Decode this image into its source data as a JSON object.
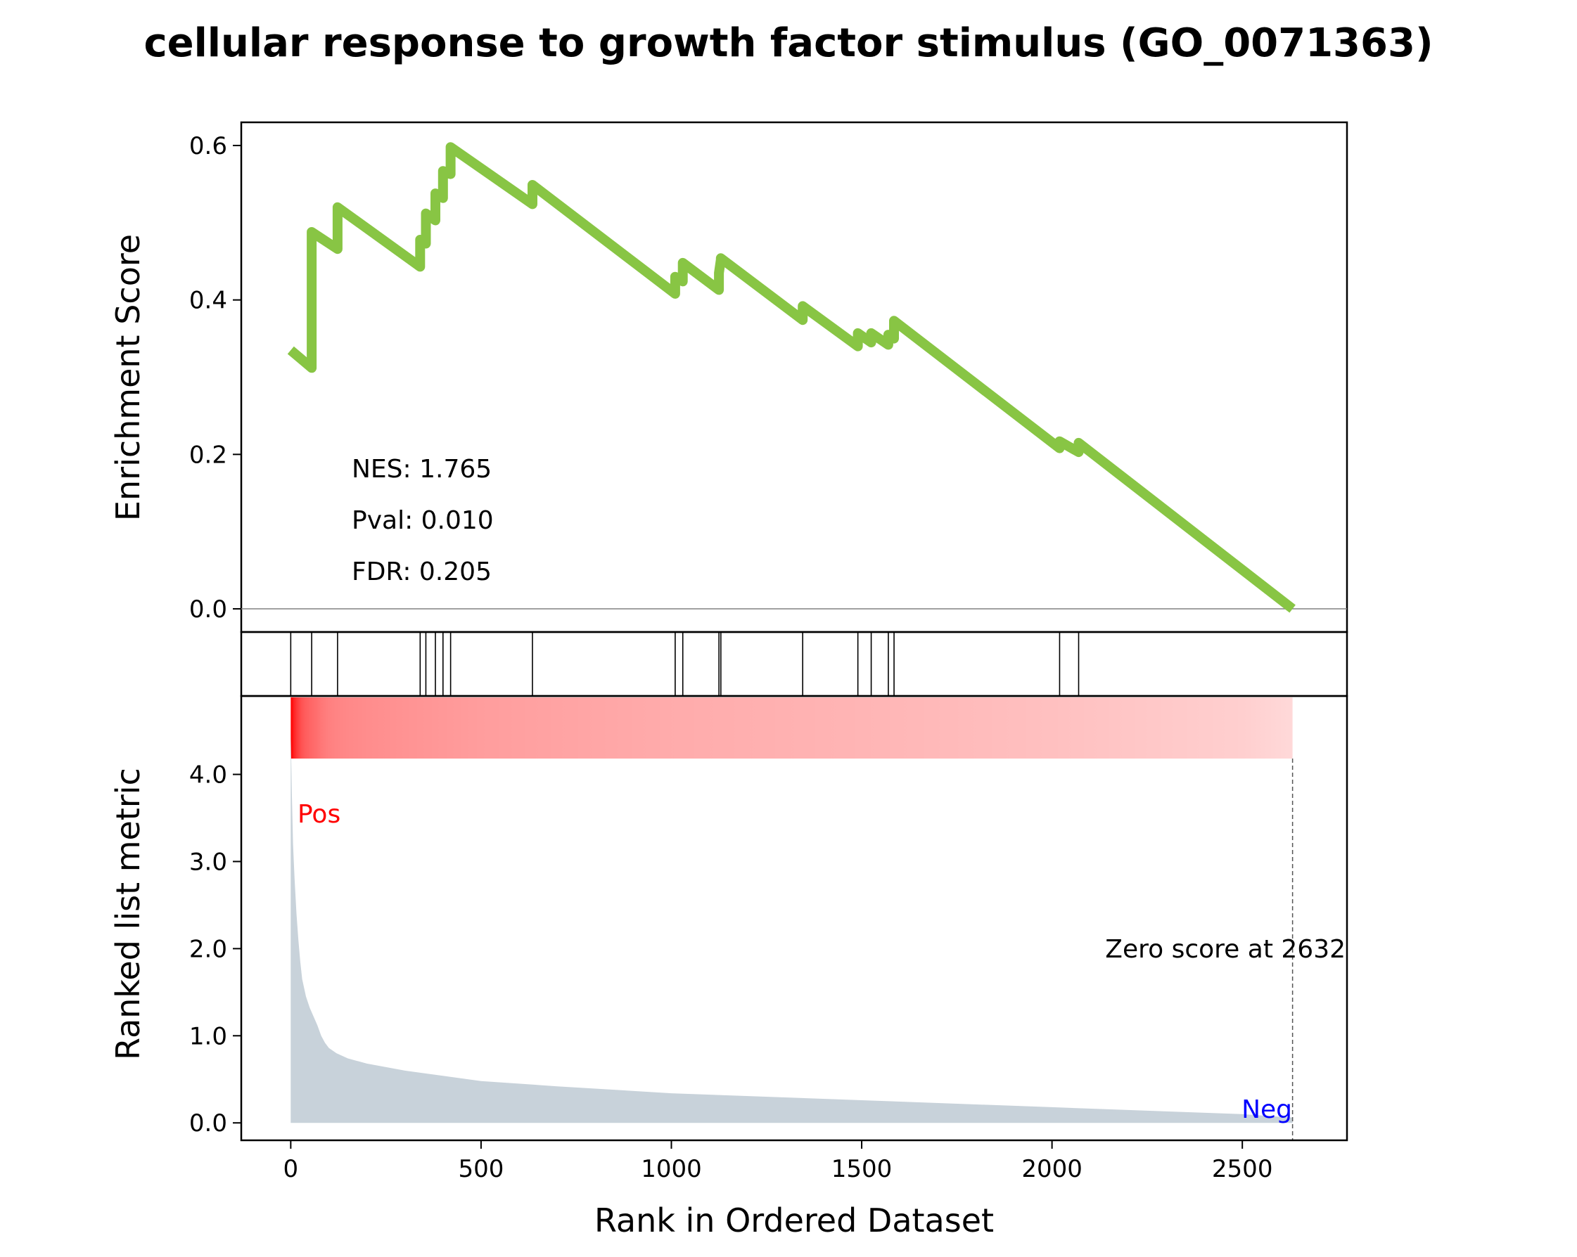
{
  "chart_data": {
    "type": "line",
    "title": "cellular response to growth factor stimulus (GO_0071363)",
    "xlabel": "Rank in Ordered Dataset",
    "xlim": [
      -130,
      2775
    ],
    "x_ticks": [
      0,
      500,
      1000,
      1500,
      2000,
      2500
    ],
    "x_tick_labels": [
      "0",
      "500",
      "1000",
      "1500",
      "2000",
      "2500"
    ],
    "es_panel": {
      "ylabel": "Enrichment Score",
      "ylim": [
        -0.03,
        0.63
      ],
      "y_ticks": [
        0.0,
        0.2,
        0.4,
        0.6
      ],
      "y_tick_labels": [
        "0.0",
        "0.2",
        "0.4",
        "0.6"
      ],
      "zero_line": true,
      "line_color": "#88c544",
      "series": [
        {
          "x": [
            0,
            55,
            55,
            123,
            123,
            340,
            340,
            355,
            355,
            380,
            380,
            400,
            400,
            420,
            420,
            635,
            635,
            1010,
            1010,
            1030,
            1030,
            1125,
            1125,
            1130,
            1130,
            1345,
            1345,
            1490,
            1490,
            1525,
            1525,
            1570,
            1570,
            1585,
            1585,
            2020,
            2020,
            2070,
            2070,
            2632
          ],
          "y": [
            0.335,
            0.312,
            0.488,
            0.466,
            0.52,
            0.443,
            0.478,
            0.473,
            0.512,
            0.503,
            0.538,
            0.532,
            0.567,
            0.563,
            0.598,
            0.524,
            0.549,
            0.408,
            0.43,
            0.424,
            0.448,
            0.413,
            0.435,
            0.452,
            0.454,
            0.374,
            0.392,
            0.34,
            0.357,
            0.345,
            0.357,
            0.342,
            0.355,
            0.35,
            0.373,
            0.208,
            0.217,
            0.203,
            0.215,
            0.0
          ]
        }
      ],
      "annotations": [
        "NES: 1.765",
        "Pval: 0.010",
        "FDR: 0.205"
      ]
    },
    "hits_panel": {
      "hit_ranks": [
        0,
        55,
        123,
        340,
        355,
        380,
        400,
        420,
        635,
        1010,
        1030,
        1125,
        1130,
        1345,
        1490,
        1525,
        1570,
        1585,
        2020,
        2070
      ]
    },
    "rank_panel": {
      "ylabel": "Ranked list metric",
      "ylim": [
        -0.2,
        4.9
      ],
      "y_ticks": [
        0.0,
        1.0,
        2.0,
        3.0,
        4.0
      ],
      "y_tick_labels": [
        "0.0",
        "1.0",
        "2.0",
        "3.0",
        "4.0"
      ],
      "fill_color": "#c8d2da",
      "gradient_color": "#ff0000",
      "x": [
        0,
        3,
        6,
        10,
        15,
        20,
        25,
        30,
        40,
        50,
        60,
        70,
        80,
        90,
        100,
        120,
        150,
        200,
        300,
        500,
        700,
        1000,
        1500,
        2000,
        2500,
        2632
      ],
      "y": [
        4.5,
        3.75,
        3.2,
        2.8,
        2.4,
        2.1,
        1.85,
        1.65,
        1.45,
        1.32,
        1.22,
        1.12,
        1.0,
        0.92,
        0.86,
        0.8,
        0.74,
        0.68,
        0.6,
        0.48,
        0.42,
        0.34,
        0.26,
        0.18,
        0.1,
        0.06
      ],
      "zero_score_label": "Zero score at 2632",
      "zero_score_rank": 2632,
      "pos_label": "Pos",
      "pos_color": "#ff0000",
      "neg_label": "Neg",
      "neg_color": "#0000ff"
    }
  }
}
